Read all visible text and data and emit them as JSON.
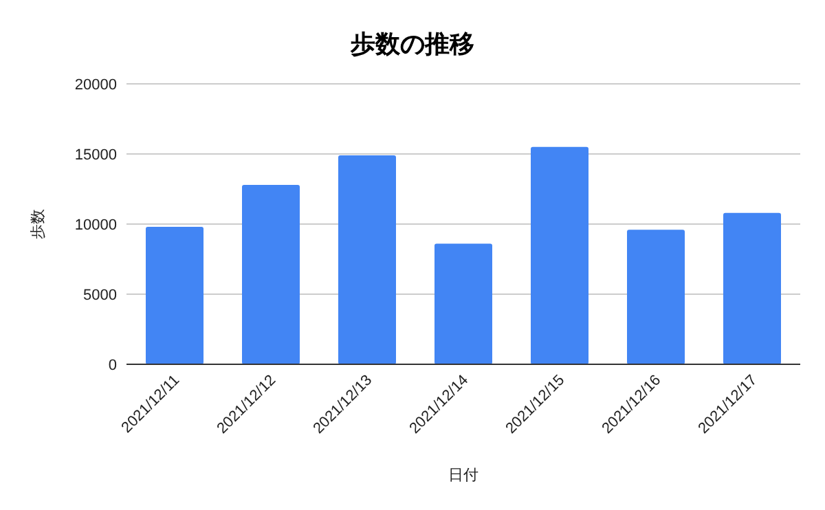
{
  "chart_data": {
    "type": "bar",
    "title": "歩数の推移",
    "xlabel": "日付",
    "ylabel": "歩数",
    "categories": [
      "2021/12/11",
      "2021/12/12",
      "2021/12/13",
      "2021/12/14",
      "2021/12/15",
      "2021/12/16",
      "2021/12/17"
    ],
    "values": [
      9800,
      12800,
      14900,
      8600,
      15500,
      9600,
      10800
    ],
    "color": "#4285f4",
    "ylim": [
      0,
      20000
    ],
    "yticks": [
      0,
      5000,
      10000,
      15000,
      20000
    ],
    "grid": "y"
  }
}
